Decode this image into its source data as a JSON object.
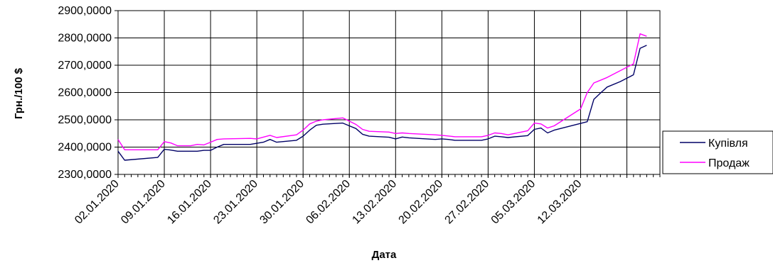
{
  "chart_data": {
    "type": "line",
    "title": "",
    "xlabel": "Дата",
    "ylabel": "Грн./100 $",
    "ylim": [
      2300,
      2900
    ],
    "y_ticks": [
      2300,
      2400,
      2500,
      2600,
      2700,
      2800,
      2900
    ],
    "y_tick_labels": [
      "2300,0000",
      "2400,0000",
      "2500,0000",
      "2600,0000",
      "2700,0000",
      "2800,0000",
      "2900,0000"
    ],
    "x_tick_labels": [
      "02.01.2020",
      "09.01.2020",
      "16.01.2020",
      "23.01.2020",
      "30.01.2020",
      "06.02.2020",
      "13.02.2020",
      "20.02.2020",
      "27.02.2020",
      "05.03.2020",
      "12.03.2020"
    ],
    "x_start": "2020-01-02",
    "x_end": "2020-03-24",
    "grid": true,
    "legend": "right",
    "series": [
      {
        "name": "Купівля",
        "color": "#000066",
        "points": [
          [
            "2020-01-02",
            2385
          ],
          [
            "2020-01-03",
            2352
          ],
          [
            "2020-01-08",
            2362
          ],
          [
            "2020-01-09",
            2392
          ],
          [
            "2020-01-10",
            2389
          ],
          [
            "2020-01-11",
            2385
          ],
          [
            "2020-01-13",
            2385
          ],
          [
            "2020-01-14",
            2385
          ],
          [
            "2020-01-15",
            2388
          ],
          [
            "2020-01-16",
            2388
          ],
          [
            "2020-01-17",
            2400
          ],
          [
            "2020-01-18",
            2410
          ],
          [
            "2020-01-22",
            2410
          ],
          [
            "2020-01-24",
            2418
          ],
          [
            "2020-01-25",
            2428
          ],
          [
            "2020-01-26",
            2418
          ],
          [
            "2020-01-29",
            2425
          ],
          [
            "2020-01-30",
            2440
          ],
          [
            "2020-01-31",
            2462
          ],
          [
            "2020-02-01",
            2480
          ],
          [
            "2020-02-02",
            2484
          ],
          [
            "2020-02-05",
            2488
          ],
          [
            "2020-02-06",
            2478
          ],
          [
            "2020-02-07",
            2468
          ],
          [
            "2020-02-08",
            2447
          ],
          [
            "2020-02-09",
            2440
          ],
          [
            "2020-02-12",
            2436
          ],
          [
            "2020-02-13",
            2430
          ],
          [
            "2020-02-14",
            2437
          ],
          [
            "2020-02-15",
            2434
          ],
          [
            "2020-02-19",
            2428
          ],
          [
            "2020-02-20",
            2430
          ],
          [
            "2020-02-21",
            2428
          ],
          [
            "2020-02-22",
            2425
          ],
          [
            "2020-02-26",
            2425
          ],
          [
            "2020-02-27",
            2430
          ],
          [
            "2020-02-28",
            2440
          ],
          [
            "2020-02-29",
            2438
          ],
          [
            "2020-03-01",
            2435
          ],
          [
            "2020-03-04",
            2442
          ],
          [
            "2020-03-05",
            2465
          ],
          [
            "2020-03-06",
            2470
          ],
          [
            "2020-03-07",
            2452
          ],
          [
            "2020-03-08",
            2462
          ],
          [
            "2020-03-13",
            2493
          ],
          [
            "2020-03-14",
            2575
          ],
          [
            "2020-03-15",
            2598
          ],
          [
            "2020-03-16",
            2620
          ],
          [
            "2020-03-18",
            2640
          ],
          [
            "2020-03-20",
            2665
          ],
          [
            "2020-03-21",
            2762
          ],
          [
            "2020-03-22",
            2773
          ]
        ]
      },
      {
        "name": "Продаж",
        "color": "#ff00ff",
        "points": [
          [
            "2020-01-02",
            2428
          ],
          [
            "2020-01-03",
            2390
          ],
          [
            "2020-01-08",
            2390
          ],
          [
            "2020-01-09",
            2420
          ],
          [
            "2020-01-10",
            2415
          ],
          [
            "2020-01-11",
            2405
          ],
          [
            "2020-01-13",
            2405
          ],
          [
            "2020-01-14",
            2410
          ],
          [
            "2020-01-15",
            2408
          ],
          [
            "2020-01-16",
            2418
          ],
          [
            "2020-01-17",
            2428
          ],
          [
            "2020-01-18",
            2430
          ],
          [
            "2020-01-22",
            2432
          ],
          [
            "2020-01-23",
            2430
          ],
          [
            "2020-01-25",
            2443
          ],
          [
            "2020-01-26",
            2435
          ],
          [
            "2020-01-29",
            2445
          ],
          [
            "2020-01-30",
            2462
          ],
          [
            "2020-01-31",
            2485
          ],
          [
            "2020-02-01",
            2495
          ],
          [
            "2020-02-02",
            2500
          ],
          [
            "2020-02-05",
            2507
          ],
          [
            "2020-02-06",
            2495
          ],
          [
            "2020-02-07",
            2483
          ],
          [
            "2020-02-08",
            2465
          ],
          [
            "2020-02-09",
            2458
          ],
          [
            "2020-02-12",
            2455
          ],
          [
            "2020-02-13",
            2450
          ],
          [
            "2020-02-14",
            2452
          ],
          [
            "2020-02-15",
            2450
          ],
          [
            "2020-02-19",
            2445
          ],
          [
            "2020-02-20",
            2443
          ],
          [
            "2020-02-22",
            2438
          ],
          [
            "2020-02-26",
            2438
          ],
          [
            "2020-02-27",
            2443
          ],
          [
            "2020-02-28",
            2452
          ],
          [
            "2020-02-29",
            2450
          ],
          [
            "2020-03-01",
            2445
          ],
          [
            "2020-03-04",
            2460
          ],
          [
            "2020-03-05",
            2488
          ],
          [
            "2020-03-06",
            2485
          ],
          [
            "2020-03-07",
            2470
          ],
          [
            "2020-03-08",
            2478
          ],
          [
            "2020-03-12",
            2540
          ],
          [
            "2020-03-13",
            2600
          ],
          [
            "2020-03-14",
            2635
          ],
          [
            "2020-03-15",
            2645
          ],
          [
            "2020-03-16",
            2655
          ],
          [
            "2020-03-20",
            2705
          ],
          [
            "2020-03-21",
            2815
          ],
          [
            "2020-03-22",
            2806
          ]
        ]
      }
    ]
  }
}
